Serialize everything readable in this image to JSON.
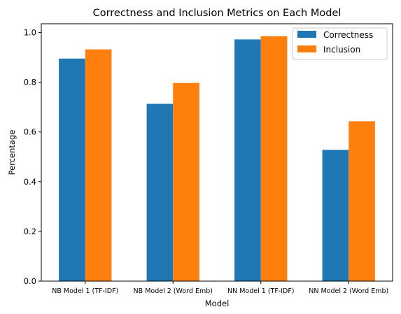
{
  "chart_data": {
    "type": "bar",
    "title": "Correctness and Inclusion Metrics on Each Model",
    "xlabel": "Model",
    "ylabel": "Percentage",
    "categories": [
      "NB Model 1 (TF-IDF)",
      "NB Model 2 (Word Emb)",
      "NN Model 1 (TF-IDF)",
      "NN Model 2 (Word Emb)"
    ],
    "series": [
      {
        "name": "Correctness",
        "color": "#1f77b4",
        "values": [
          0.895,
          0.713,
          0.972,
          0.528
        ]
      },
      {
        "name": "Inclusion",
        "color": "#ff7f0e",
        "values": [
          0.932,
          0.797,
          0.985,
          0.643
        ]
      }
    ],
    "ylim": [
      0,
      1.035
    ],
    "yticks": [
      "0.0",
      "0.2",
      "0.4",
      "0.6",
      "0.8",
      "1.0"
    ],
    "grid": false,
    "legend_position": "top-right"
  }
}
